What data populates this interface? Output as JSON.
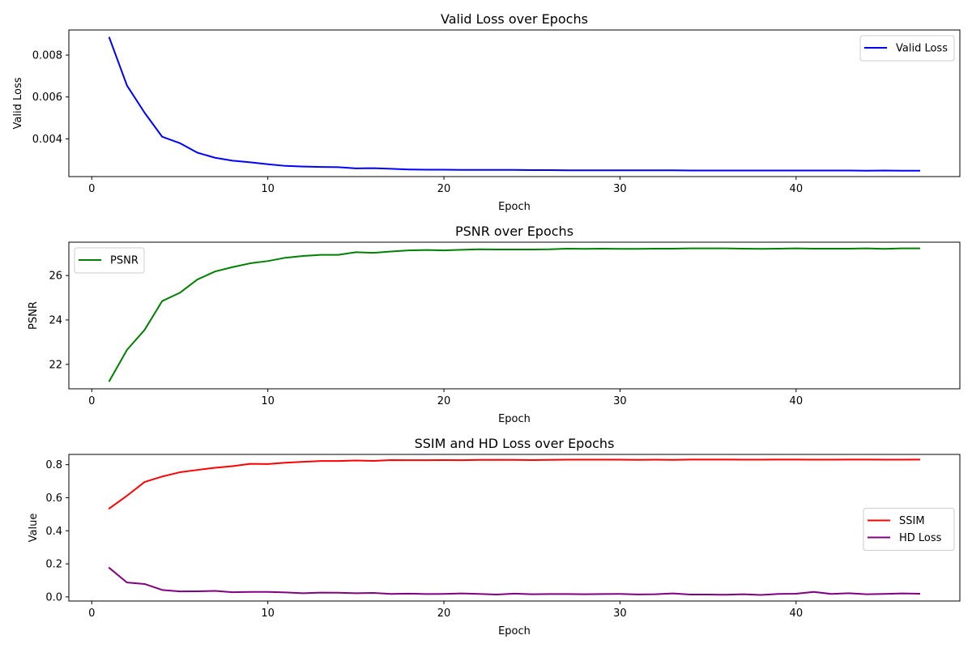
{
  "chart_data": [
    {
      "type": "line",
      "title": "Valid Loss over Epochs",
      "xlabel": "Epoch",
      "ylabel": "Valid Loss",
      "xlim": [
        -1.3,
        49.3
      ],
      "ylim": [
        0.0022,
        0.0092
      ],
      "xticks": [
        0,
        10,
        20,
        30,
        40
      ],
      "xtick_labels": [
        "0",
        "10",
        "20",
        "30",
        "40"
      ],
      "yticks": [
        0.004,
        0.006,
        0.008
      ],
      "ytick_labels": [
        "0.004",
        "0.006",
        "0.008"
      ],
      "grid": false,
      "legend": "upper-right",
      "x": [
        1,
        2,
        3,
        4,
        5,
        6,
        7,
        8,
        9,
        10,
        11,
        12,
        13,
        14,
        15,
        16,
        17,
        18,
        19,
        20,
        21,
        22,
        23,
        24,
        25,
        26,
        27,
        28,
        29,
        30,
        31,
        32,
        33,
        34,
        35,
        36,
        37,
        38,
        39,
        40,
        41,
        42,
        43,
        44,
        45,
        46,
        47
      ],
      "series": [
        {
          "name": "Valid Loss",
          "color": "#0000ff",
          "values": [
            0.00883,
            0.00655,
            0.00525,
            0.0041,
            0.0038,
            0.00334,
            0.0031,
            0.00296,
            0.00288,
            0.00279,
            0.00271,
            0.00268,
            0.00266,
            0.00265,
            0.00259,
            0.0026,
            0.00257,
            0.00254,
            0.00253,
            0.00253,
            0.00252,
            0.00252,
            0.00252,
            0.00252,
            0.00251,
            0.00251,
            0.0025,
            0.0025,
            0.0025,
            0.0025,
            0.0025,
            0.0025,
            0.0025,
            0.00249,
            0.00249,
            0.00249,
            0.00249,
            0.00249,
            0.00249,
            0.00249,
            0.00249,
            0.00249,
            0.00249,
            0.00248,
            0.00249,
            0.00248,
            0.00248
          ]
        }
      ]
    },
    {
      "type": "line",
      "title": "PSNR over Epochs",
      "xlabel": "Epoch",
      "ylabel": "PSNR",
      "xlim": [
        -1.3,
        49.3
      ],
      "ylim": [
        20.9,
        27.5
      ],
      "xticks": [
        0,
        10,
        20,
        30,
        40
      ],
      "xtick_labels": [
        "0",
        "10",
        "20",
        "30",
        "40"
      ],
      "yticks": [
        22,
        24,
        26
      ],
      "ytick_labels": [
        "22",
        "24",
        "26"
      ],
      "grid": false,
      "legend": "upper-left",
      "x": [
        1,
        2,
        3,
        4,
        5,
        6,
        7,
        8,
        9,
        10,
        11,
        12,
        13,
        14,
        15,
        16,
        17,
        18,
        19,
        20,
        21,
        22,
        23,
        24,
        25,
        26,
        27,
        28,
        29,
        30,
        31,
        32,
        33,
        34,
        35,
        36,
        37,
        38,
        39,
        40,
        41,
        42,
        43,
        44,
        45,
        46,
        47
      ],
      "series": [
        {
          "name": "PSNR",
          "color": "#008000",
          "values": [
            21.25,
            22.65,
            23.55,
            24.85,
            25.22,
            25.82,
            26.18,
            26.38,
            26.55,
            26.65,
            26.8,
            26.88,
            26.93,
            26.93,
            27.05,
            27.02,
            27.08,
            27.13,
            27.15,
            27.13,
            27.16,
            27.18,
            27.17,
            27.17,
            27.17,
            27.18,
            27.21,
            27.2,
            27.21,
            27.2,
            27.2,
            27.21,
            27.21,
            27.22,
            27.22,
            27.22,
            27.21,
            27.2,
            27.21,
            27.22,
            27.21,
            27.21,
            27.21,
            27.22,
            27.2,
            27.22,
            27.22
          ]
        }
      ]
    },
    {
      "type": "line",
      "title": "SSIM and HD Loss over Epochs",
      "xlabel": "Epoch",
      "ylabel": "Value",
      "xlim": [
        -1.3,
        49.3
      ],
      "ylim": [
        -0.025,
        0.862
      ],
      "xticks": [
        0,
        10,
        20,
        30,
        40
      ],
      "xtick_labels": [
        "0",
        "10",
        "20",
        "30",
        "40"
      ],
      "yticks": [
        0.0,
        0.2,
        0.4,
        0.6,
        0.8
      ],
      "ytick_labels": [
        "0.0",
        "0.2",
        "0.4",
        "0.6",
        "0.8"
      ],
      "grid": false,
      "legend": "center-right",
      "x": [
        1,
        2,
        3,
        4,
        5,
        6,
        7,
        8,
        9,
        10,
        11,
        12,
        13,
        14,
        15,
        16,
        17,
        18,
        19,
        20,
        21,
        22,
        23,
        24,
        25,
        26,
        27,
        28,
        29,
        30,
        31,
        32,
        33,
        34,
        35,
        36,
        37,
        38,
        39,
        40,
        41,
        42,
        43,
        44,
        45,
        46,
        47
      ],
      "series": [
        {
          "name": "SSIM",
          "color": "#ff0000",
          "values": [
            0.535,
            0.612,
            0.695,
            0.728,
            0.754,
            0.768,
            0.781,
            0.791,
            0.805,
            0.804,
            0.812,
            0.817,
            0.822,
            0.822,
            0.825,
            0.823,
            0.828,
            0.827,
            0.827,
            0.828,
            0.827,
            0.829,
            0.829,
            0.829,
            0.828,
            0.829,
            0.83,
            0.83,
            0.83,
            0.83,
            0.829,
            0.83,
            0.829,
            0.831,
            0.831,
            0.831,
            0.83,
            0.83,
            0.831,
            0.831,
            0.83,
            0.83,
            0.831,
            0.831,
            0.83,
            0.83,
            0.831
          ]
        },
        {
          "name": "HD Loss",
          "color": "#800080",
          "values": [
            0.175,
            0.087,
            0.078,
            0.042,
            0.033,
            0.034,
            0.036,
            0.028,
            0.03,
            0.03,
            0.027,
            0.022,
            0.026,
            0.025,
            0.022,
            0.024,
            0.018,
            0.02,
            0.017,
            0.018,
            0.021,
            0.018,
            0.014,
            0.02,
            0.016,
            0.017,
            0.017,
            0.016,
            0.017,
            0.018,
            0.015,
            0.016,
            0.021,
            0.014,
            0.014,
            0.013,
            0.016,
            0.012,
            0.018,
            0.019,
            0.03,
            0.018,
            0.022,
            0.016,
            0.018,
            0.021,
            0.019
          ]
        }
      ]
    }
  ]
}
